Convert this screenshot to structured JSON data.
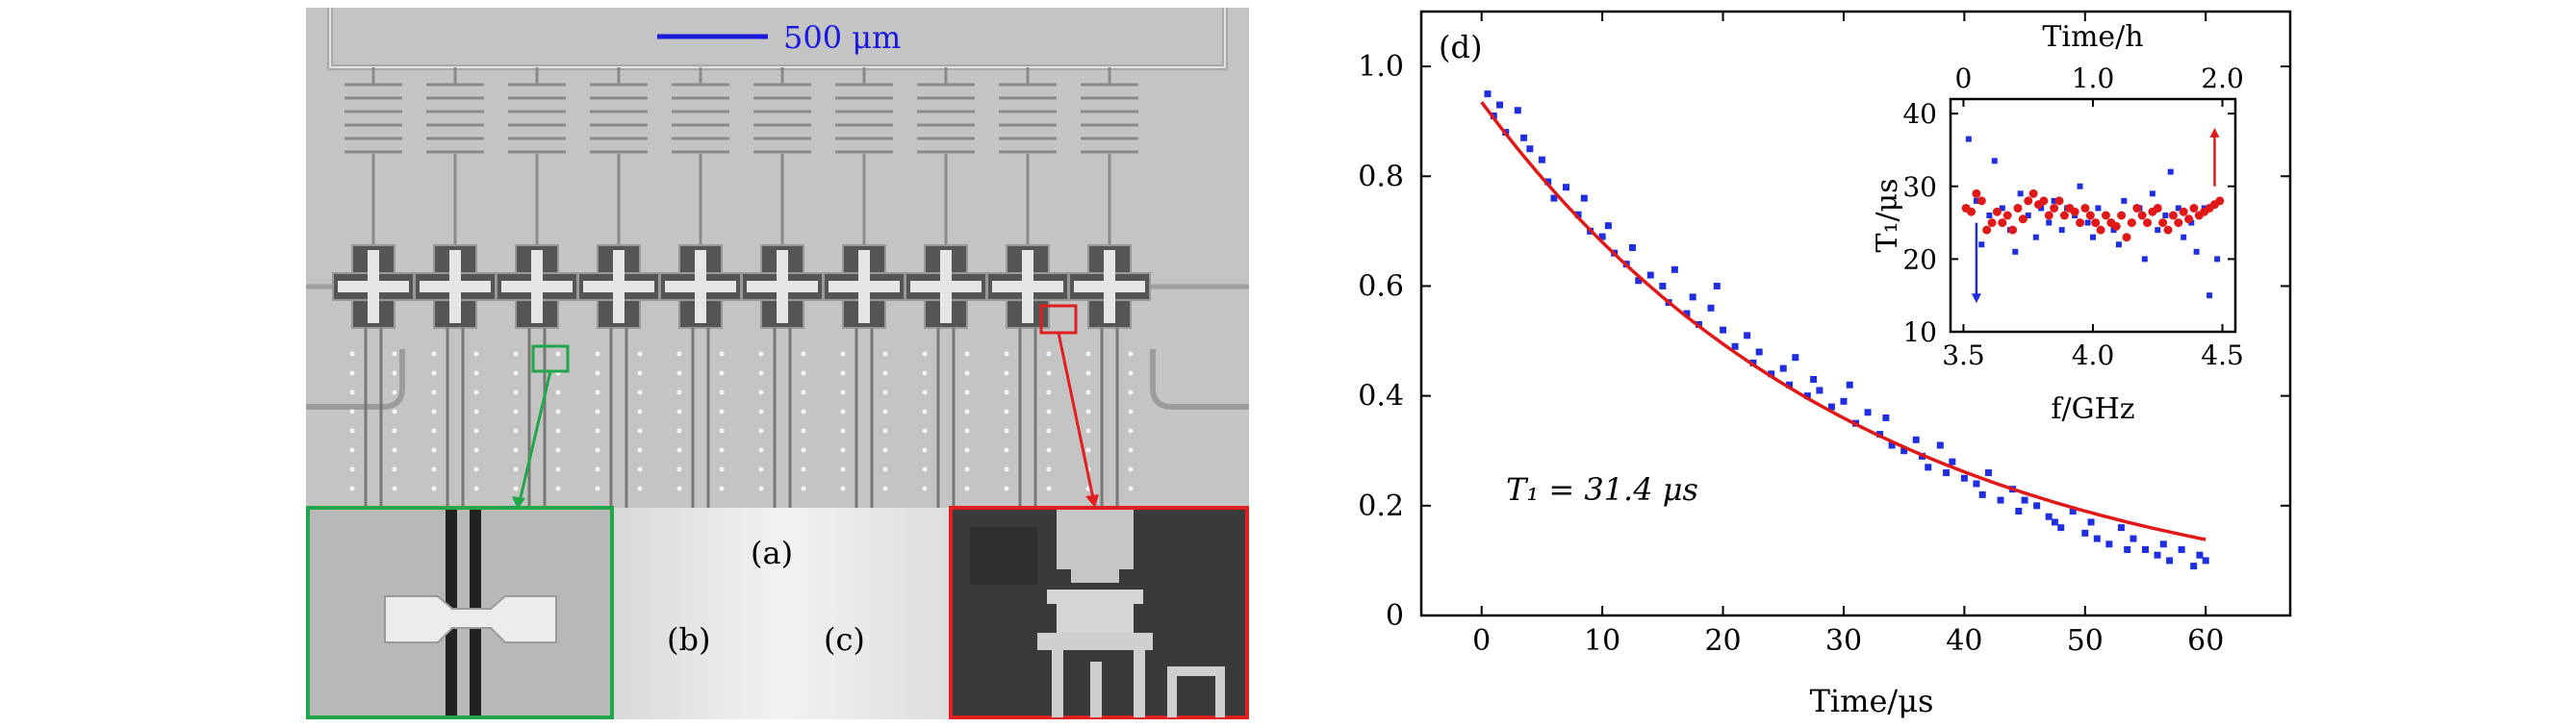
{
  "panel_a": {
    "scale_bar_label": "500 μm",
    "label_a": "(a)",
    "label_b": "(b)",
    "label_c": "(c)",
    "num_qubits": 10
  },
  "panel_d": {
    "label": "(d)",
    "annotation": "T₁ = 31.4 μs",
    "colors": {
      "data": "#1f2fe0",
      "fit": "#e01818",
      "frame": "#000000"
    }
  },
  "chart_data": [
    {
      "type": "scatter",
      "title": "",
      "xlabel": "Time/μs",
      "ylabel": "",
      "xlim": [
        -5,
        67
      ],
      "ylim": [
        0,
        1.1
      ],
      "xticks": [
        0,
        10,
        20,
        30,
        40,
        50,
        60
      ],
      "yticks": [
        0,
        0.2,
        0.4,
        0.6,
        0.8,
        1.0
      ],
      "ytick_labels": [
        "0",
        "0.2",
        "0.4",
        "0.6",
        "0.8",
        "1.0"
      ],
      "series": [
        {
          "kind": "points",
          "color": "#1f2fe0",
          "x": [
            0.5,
            1,
            1.5,
            2,
            3,
            3.5,
            4,
            5,
            5.5,
            6,
            7,
            8,
            8.5,
            9,
            10,
            10.5,
            11,
            12,
            12.5,
            13,
            14,
            15,
            15.5,
            16,
            17,
            17.5,
            18,
            19,
            19.5,
            20,
            21,
            22,
            22.5,
            23,
            24,
            25,
            25.5,
            26,
            27,
            27.5,
            28,
            29,
            30,
            30.5,
            31,
            32,
            33,
            33.5,
            34,
            35,
            36,
            36.5,
            37,
            38,
            38.5,
            39,
            40,
            41,
            41.5,
            42,
            43,
            44,
            44.5,
            45,
            46,
            47,
            47.5,
            48,
            49,
            50,
            50.5,
            51,
            52,
            53,
            53.5,
            54,
            55,
            56,
            56.5,
            57,
            58,
            59,
            59.5,
            60
          ],
          "y": [
            0.95,
            0.91,
            0.93,
            0.88,
            0.92,
            0.87,
            0.85,
            0.83,
            0.79,
            0.76,
            0.78,
            0.73,
            0.76,
            0.7,
            0.69,
            0.71,
            0.66,
            0.64,
            0.67,
            0.61,
            0.62,
            0.6,
            0.57,
            0.63,
            0.55,
            0.58,
            0.53,
            0.56,
            0.6,
            0.52,
            0.49,
            0.51,
            0.46,
            0.48,
            0.44,
            0.45,
            0.42,
            0.47,
            0.4,
            0.43,
            0.41,
            0.38,
            0.39,
            0.42,
            0.35,
            0.37,
            0.33,
            0.36,
            0.31,
            0.3,
            0.32,
            0.29,
            0.27,
            0.31,
            0.26,
            0.28,
            0.25,
            0.24,
            0.22,
            0.26,
            0.21,
            0.23,
            0.19,
            0.21,
            0.2,
            0.18,
            0.17,
            0.16,
            0.19,
            0.15,
            0.17,
            0.14,
            0.13,
            0.16,
            0.12,
            0.14,
            0.12,
            0.11,
            0.13,
            0.1,
            0.12,
            0.09,
            0.11,
            0.1
          ]
        },
        {
          "kind": "fit",
          "color": "#e01818",
          "model": "exponential_decay",
          "T1": 31.4,
          "amplitude": 0.935,
          "x_range": [
            0,
            60
          ]
        }
      ]
    },
    {
      "type": "scatter",
      "title": "",
      "inset": true,
      "xlabel": "f/GHz",
      "ylabel": "T₁/μs",
      "top_xlabel": "Time/h",
      "xlim": [
        3.45,
        4.55
      ],
      "ylim": [
        10,
        42
      ],
      "xticks": [
        3.5,
        4.0,
        4.5
      ],
      "xtick_labels": [
        "3.5",
        "4.0",
        "4.5"
      ],
      "yticks": [
        10,
        20,
        30,
        40
      ],
      "top_xticks": [
        0,
        1.0,
        2.0
      ],
      "top_xtick_labels": [
        "0",
        "1.0",
        "2.0"
      ],
      "series": [
        {
          "kind": "points",
          "color": "#1f2fe0",
          "x": [
            3.52,
            3.55,
            3.57,
            3.6,
            3.62,
            3.65,
            3.68,
            3.7,
            3.72,
            3.75,
            3.78,
            3.8,
            3.83,
            3.85,
            3.88,
            3.9,
            3.93,
            3.95,
            3.98,
            4.0,
            4.02,
            4.05,
            4.08,
            4.1,
            4.12,
            4.15,
            4.18,
            4.2,
            4.23,
            4.25,
            4.28,
            4.3,
            4.33,
            4.35,
            4.38,
            4.4,
            4.43,
            4.45,
            4.48
          ],
          "y": [
            36.5,
            28,
            22,
            26,
            33.5,
            27,
            24,
            21,
            29,
            26,
            23,
            27,
            25,
            28,
            24,
            27,
            26,
            30,
            25,
            23,
            27,
            26,
            24,
            22,
            28,
            25,
            27,
            20,
            29,
            24,
            26,
            32,
            27,
            23,
            25,
            21,
            27,
            15,
            20
          ]
        },
        {
          "kind": "points",
          "color": "#e01818",
          "x": [
            3.51,
            3.53,
            3.55,
            3.57,
            3.59,
            3.61,
            3.63,
            3.65,
            3.67,
            3.69,
            3.71,
            3.73,
            3.75,
            3.77,
            3.79,
            3.81,
            3.83,
            3.85,
            3.87,
            3.89,
            3.91,
            3.93,
            3.95,
            3.97,
            3.99,
            4.01,
            4.03,
            4.05,
            4.07,
            4.09,
            4.11,
            4.13,
            4.15,
            4.17,
            4.19,
            4.21,
            4.23,
            4.25,
            4.27,
            4.29,
            4.31,
            4.33,
            4.35,
            4.37,
            4.39,
            4.41,
            4.43,
            4.45,
            4.47,
            4.49
          ],
          "y": [
            27,
            26.5,
            29,
            28,
            24,
            25,
            26.5,
            25,
            26,
            24,
            27,
            25.5,
            28,
            29,
            27.5,
            28,
            26,
            27,
            28,
            26,
            27,
            26.5,
            25,
            27,
            26,
            25,
            24,
            26,
            25,
            24.5,
            26,
            23,
            25,
            27,
            26,
            25,
            26.5,
            27,
            25,
            24,
            26,
            25,
            26.5,
            25.5,
            27,
            26,
            26.5,
            27,
            27.5,
            28
          ]
        }
      ],
      "arrows": [
        {
          "color": "#1f2fe0",
          "direction": "down",
          "x": 3.55
        },
        {
          "color": "#e01818",
          "direction": "up",
          "x": 4.47
        }
      ]
    }
  ]
}
